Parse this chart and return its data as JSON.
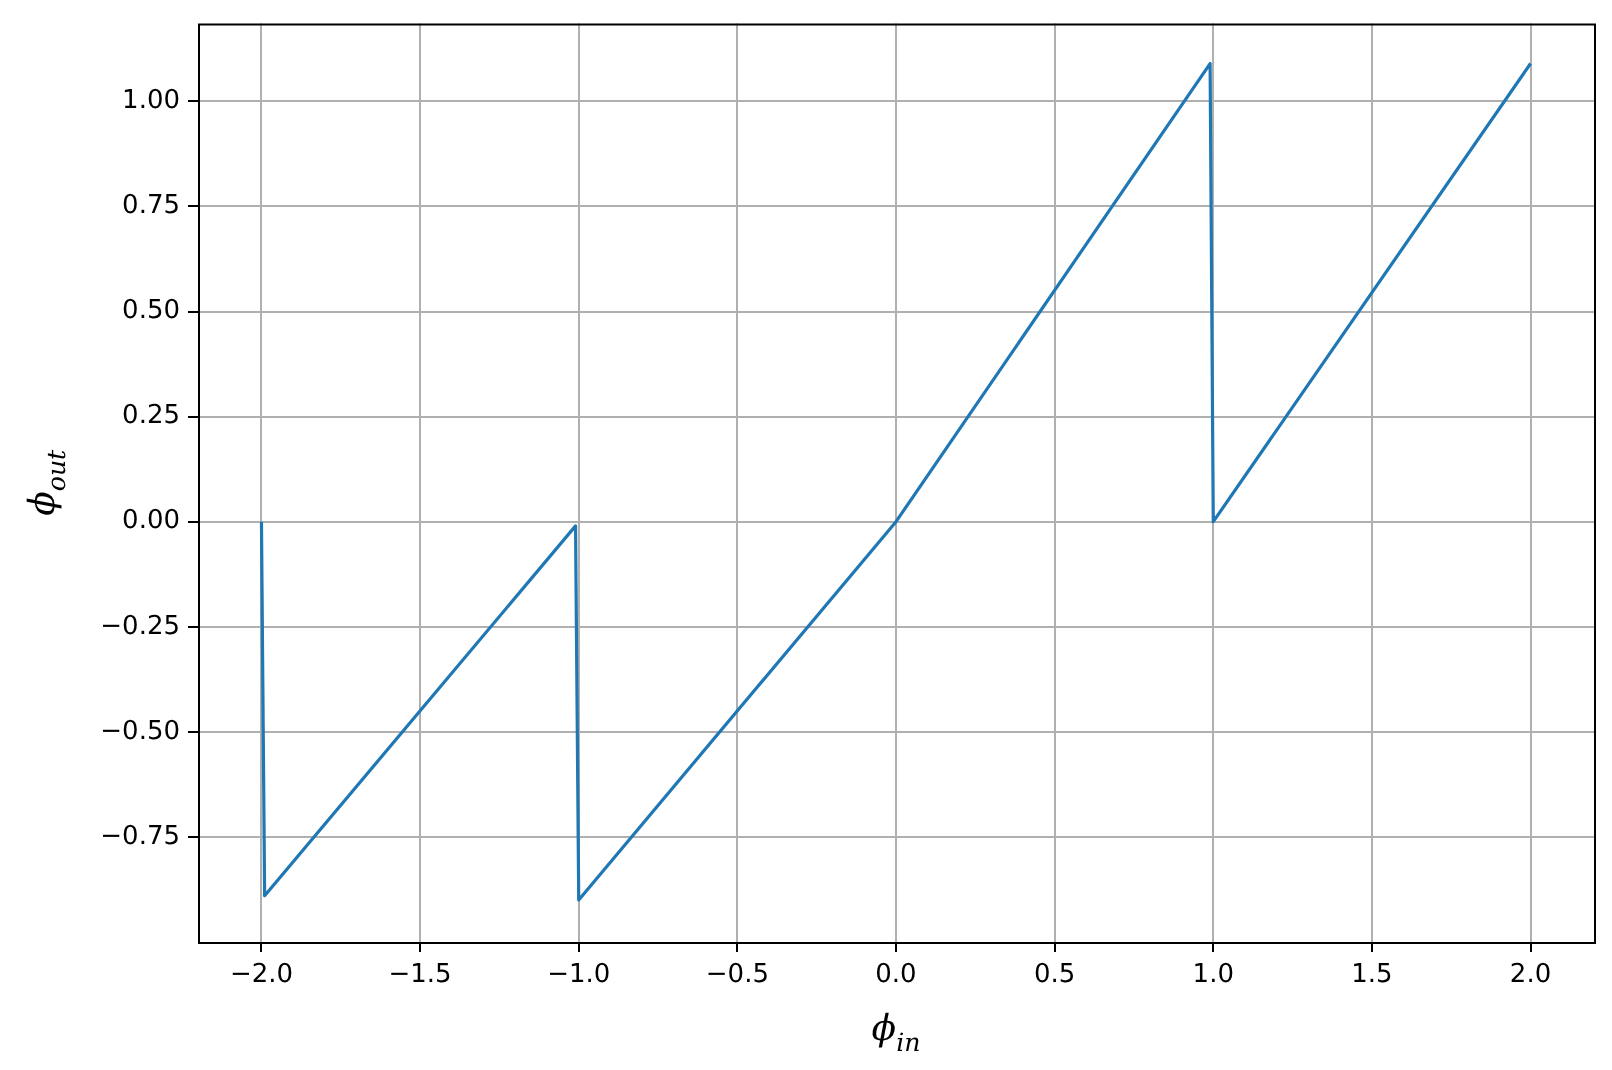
{
  "chart_data": {
    "type": "line",
    "xlabel": "ϕ$_{in}$",
    "ylabel": "ϕ$_{out}$",
    "series": [
      {
        "color": "#1f77b4",
        "x": [
          -2.0,
          -1.99,
          -1.01,
          -1.0,
          0.0,
          0.99,
          1.0,
          2.0
        ],
        "values": [
          0.0,
          -0.89,
          -0.01,
          -0.9,
          0.0,
          1.09,
          0.0,
          1.09
        ]
      }
    ],
    "xlim": [
      -2.2,
      2.2
    ],
    "ylim": [
      -1.0,
      1.185
    ],
    "xticks": [
      {
        "value": -2,
        "label": "−2.0"
      },
      {
        "value": -1.5,
        "label": "−1.5"
      },
      {
        "value": -1,
        "label": "−1.0"
      },
      {
        "value": -0.5,
        "label": "−0.5"
      },
      {
        "value": 0,
        "label": "0.0"
      },
      {
        "value": 0.5,
        "label": "0.5"
      },
      {
        "value": 1,
        "label": "1.0"
      },
      {
        "value": 1.5,
        "label": "1.5"
      },
      {
        "value": 2,
        "label": "2.0"
      }
    ],
    "yticks": [
      {
        "value": -0.75,
        "label": "−0.75"
      },
      {
        "value": -0.5,
        "label": "−0.50"
      },
      {
        "value": -0.25,
        "label": "−0.25"
      },
      {
        "value": 0,
        "label": "0.00"
      },
      {
        "value": 0.25,
        "label": "0.25"
      },
      {
        "value": 0.5,
        "label": "0.50"
      },
      {
        "value": 0.75,
        "label": "0.75"
      },
      {
        "value": 1,
        "label": "1.00"
      }
    ],
    "grid": true,
    "legend": false,
    "marker": "none",
    "line_style": "solid"
  }
}
